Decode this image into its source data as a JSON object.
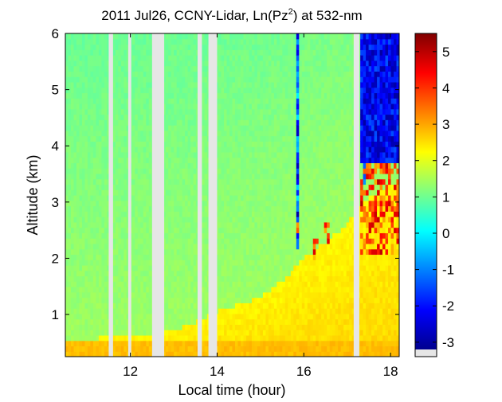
{
  "chart_data": {
    "type": "heatmap",
    "title": {
      "prefix": "2011 Jul26, CCNY-Lidar, Ln(Pz",
      "superscript": "2",
      "suffix": ") at 532-nm"
    },
    "xlabel": "Local time (hour)",
    "ylabel": "Altitude (km)",
    "xlim": [
      10.5,
      18.2
    ],
    "ylim": [
      0.25,
      6.0
    ],
    "xticks": [
      12,
      14,
      16,
      18
    ],
    "yticks": [
      1,
      2,
      3,
      4,
      5,
      6
    ],
    "colorbar": {
      "range": [
        -3.2,
        5.5
      ],
      "ticks": [
        -3,
        -2,
        -1,
        0,
        1,
        2,
        3,
        4,
        5
      ],
      "colormap": "jet",
      "colors": [
        "#00008f",
        "#0000ff",
        "#0080ff",
        "#00ffff",
        "#80ff80",
        "#ffff00",
        "#ff8000",
        "#ff0000",
        "#800000"
      ]
    },
    "missing_color": "#e6e6e6",
    "data_gaps": [
      [
        11.5,
        11.6
      ],
      [
        11.95,
        12.02
      ],
      [
        12.5,
        12.78
      ],
      [
        13.55,
        13.65
      ],
      [
        13.8,
        14.0
      ],
      [
        17.15,
        17.28
      ]
    ],
    "layers": {
      "free_troposphere_value": 1.4,
      "boundary_layer_value": 2.3,
      "surface_layer_value": 2.8,
      "cloud_value": 5.0,
      "noise_value": -3.0,
      "boundary_layer_top_km": [
        [
          10.5,
          0.55
        ],
        [
          12.6,
          0.65
        ],
        [
          13.3,
          0.8
        ],
        [
          14.0,
          1.05
        ],
        [
          15.0,
          1.3
        ],
        [
          15.5,
          1.6
        ],
        [
          16.0,
          2.0
        ],
        [
          16.5,
          2.3
        ],
        [
          17.0,
          2.6
        ],
        [
          17.3,
          3.0
        ],
        [
          18.2,
          3.4
        ]
      ],
      "clouds": [
        {
          "time": [
            15.45,
            15.5
          ],
          "altitude_km": [
            2.0,
            2.3
          ]
        },
        {
          "time": [
            15.82,
            15.92
          ],
          "altitude_km": [
            2.3,
            2.7
          ]
        },
        {
          "time": [
            16.22,
            16.32
          ],
          "altitude_km": [
            1.9,
            2.4
          ]
        },
        {
          "time": [
            16.48,
            16.58
          ],
          "altitude_km": [
            2.3,
            2.6
          ]
        },
        {
          "time": [
            17.3,
            18.2
          ],
          "altitude_km": [
            2.1,
            3.7
          ]
        }
      ],
      "noise_region": {
        "time": [
          17.3,
          18.2
        ],
        "altitude_above_km": 3.7
      },
      "noise_streaks": [
        15.85,
        16.4,
        17.4,
        17.55
      ]
    }
  }
}
